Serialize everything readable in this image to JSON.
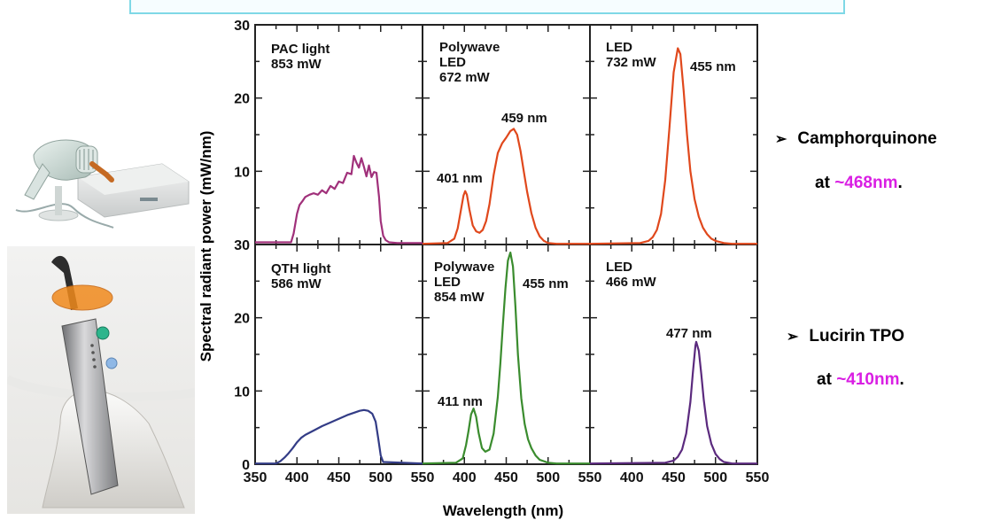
{
  "chart_data": {
    "type": "line",
    "ylabel": "Spectral radiant power (mW/nm)",
    "xlabel": "Wavelength (nm)",
    "xlim": [
      350,
      550
    ],
    "ylim": [
      0,
      30
    ],
    "xticks": [
      350,
      400,
      450,
      500,
      550
    ],
    "yticks": [
      0,
      10,
      20,
      30
    ],
    "ytick_labels_top": [
      "30",
      "20",
      "10"
    ],
    "ytick_labels_bottom": [
      "30",
      "20",
      "10",
      "0"
    ],
    "xtick_labels": [
      "350",
      "400",
      "450",
      "500",
      "550"
    ],
    "panels": [
      {
        "id": "pac",
        "row": 0,
        "col": 0,
        "color": "#a0307a",
        "name": "PAC light",
        "power": "853 mW",
        "peaks": [],
        "series": {
          "x": [
            350,
            393,
            396,
            400,
            403,
            407,
            410,
            415,
            420,
            425,
            430,
            435,
            440,
            445,
            450,
            455,
            460,
            465,
            468,
            471,
            474,
            477,
            480,
            483,
            486,
            489,
            492,
            495,
            498,
            500,
            503,
            506,
            510,
            520,
            550
          ],
          "y": [
            0.3,
            0.3,
            1.5,
            4.2,
            5.4,
            6.0,
            6.5,
            6.8,
            7.0,
            6.8,
            7.4,
            7.0,
            8.0,
            7.6,
            8.6,
            8.4,
            9.8,
            9.6,
            12.1,
            11.2,
            10.5,
            11.8,
            10.6,
            9.3,
            10.8,
            9.2,
            9.9,
            9.8,
            6.5,
            3.2,
            1.2,
            0.6,
            0.3,
            0.2,
            0.2
          ]
        }
      },
      {
        "id": "polywave1",
        "row": 0,
        "col": 1,
        "color": "#e0481c",
        "name": "Polywave\nLED",
        "power": "672 mW",
        "peaks": [
          {
            "label": "401 nm"
          },
          {
            "label": "459 nm"
          }
        ],
        "series": {
          "x": [
            350,
            380,
            388,
            392,
            396,
            399,
            401,
            403,
            406,
            410,
            414,
            418,
            422,
            426,
            430,
            435,
            440,
            445,
            450,
            455,
            459,
            463,
            467,
            471,
            475,
            480,
            485,
            490,
            495,
            500,
            510,
            520,
            550
          ],
          "y": [
            0.1,
            0.2,
            0.8,
            2.2,
            4.8,
            6.7,
            7.3,
            6.8,
            4.8,
            2.6,
            1.8,
            1.6,
            2.0,
            3.2,
            5.5,
            9.5,
            12.5,
            13.8,
            14.6,
            15.5,
            15.8,
            15.0,
            12.8,
            10.0,
            7.2,
            4.3,
            2.3,
            1.1,
            0.5,
            0.2,
            0.1,
            0.1,
            0.1
          ]
        }
      },
      {
        "id": "led1",
        "row": 0,
        "col": 2,
        "color": "#e0481c",
        "name": "LED",
        "power": "732 mW",
        "peaks": [
          {
            "label": "455 nm"
          }
        ],
        "series": {
          "x": [
            350,
            410,
            420,
            425,
            430,
            435,
            440,
            445,
            450,
            455,
            458,
            462,
            466,
            470,
            475,
            480,
            485,
            490,
            495,
            500,
            510,
            520,
            550
          ],
          "y": [
            0.1,
            0.2,
            0.5,
            1.0,
            2.0,
            4.2,
            8.8,
            16.0,
            23.5,
            26.8,
            26.0,
            21.0,
            15.0,
            10.0,
            6.2,
            3.8,
            2.3,
            1.4,
            0.8,
            0.5,
            0.2,
            0.1,
            0.1
          ]
        }
      },
      {
        "id": "qth",
        "row": 1,
        "col": 0,
        "color": "#333c86",
        "name": "QTH light",
        "power": "586 mW",
        "peaks": [],
        "series": {
          "x": [
            350,
            375,
            380,
            385,
            390,
            395,
            400,
            405,
            410,
            420,
            430,
            440,
            450,
            460,
            470,
            475,
            480,
            485,
            490,
            494,
            497,
            500,
            503,
            550
          ],
          "y": [
            0.1,
            0.1,
            0.4,
            0.9,
            1.5,
            2.2,
            3.0,
            3.6,
            4.0,
            4.6,
            5.2,
            5.7,
            6.2,
            6.7,
            7.1,
            7.3,
            7.4,
            7.3,
            6.9,
            5.8,
            3.6,
            1.2,
            0.3,
            0.1
          ]
        }
      },
      {
        "id": "polywave2",
        "row": 1,
        "col": 1,
        "color": "#3a8c2e",
        "name": "Polywave\nLED",
        "power": "854 mW",
        "peaks": [
          {
            "label": "411 nm"
          },
          {
            "label": "455 nm"
          }
        ],
        "series": {
          "x": [
            350,
            390,
            398,
            402,
            405,
            408,
            411,
            414,
            417,
            421,
            425,
            430,
            435,
            440,
            443,
            446,
            449,
            452,
            455,
            458,
            461,
            464,
            468,
            472,
            476,
            480,
            485,
            490,
            500,
            510,
            550
          ],
          "y": [
            0.1,
            0.2,
            0.8,
            2.6,
            4.6,
            6.8,
            7.6,
            6.5,
            4.3,
            2.2,
            1.7,
            2.0,
            4.2,
            9.2,
            13.8,
            19.0,
            24.0,
            27.8,
            28.9,
            27.0,
            21.5,
            15.0,
            9.0,
            5.5,
            3.4,
            2.2,
            1.2,
            0.6,
            0.2,
            0.1,
            0.1
          ]
        }
      },
      {
        "id": "led2",
        "row": 1,
        "col": 2,
        "color": "#5b2a7e",
        "name": "LED",
        "power": "466 mW",
        "peaks": [
          {
            "label": "477 nm"
          }
        ],
        "series": {
          "x": [
            350,
            440,
            450,
            455,
            460,
            465,
            470,
            473,
            476,
            477,
            480,
            483,
            486,
            490,
            495,
            500,
            505,
            510,
            520,
            550
          ],
          "y": [
            0.1,
            0.2,
            0.5,
            1.0,
            2.0,
            4.2,
            8.5,
            12.5,
            16.2,
            16.7,
            15.5,
            12.3,
            8.8,
            5.2,
            2.8,
            1.4,
            0.7,
            0.3,
            0.1,
            0.1
          ]
        }
      }
    ]
  },
  "bullets": [
    {
      "arrow": "➢",
      "text": "Camphorquinone",
      "at": "at ",
      "wavelength": "~468nm",
      "period": "."
    },
    {
      "arrow": "➢",
      "text": "Lucirin TPO",
      "at": "at ",
      "wavelength": "~410nm",
      "period": "."
    }
  ],
  "colors": {
    "highlight": "#d91fe3",
    "banner_border": "#7fd8e6"
  }
}
